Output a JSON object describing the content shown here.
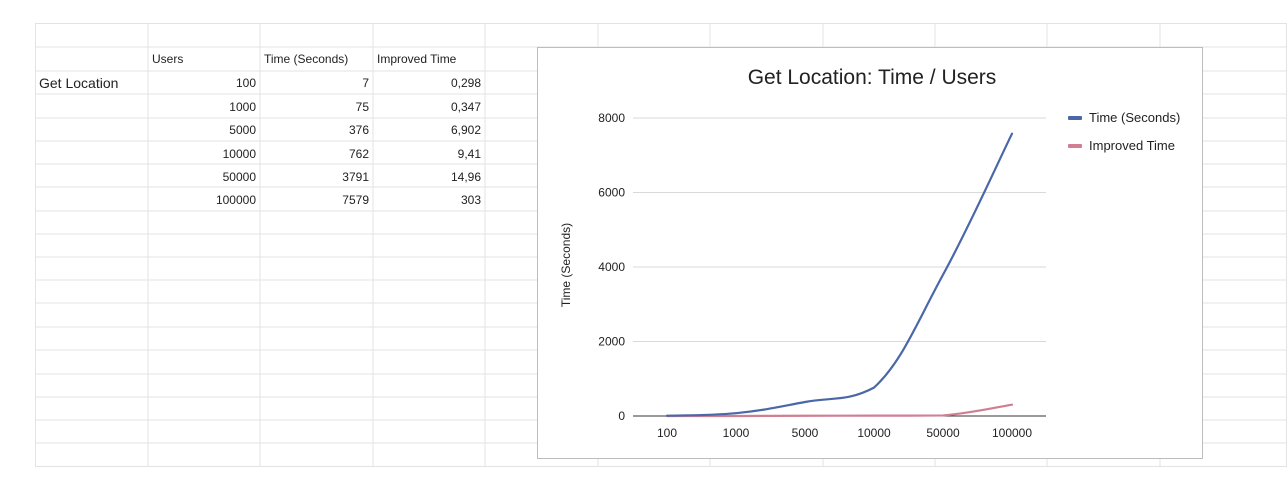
{
  "sheet": {
    "row_label": "Get Location",
    "headers": [
      "Users",
      "Time (Seconds)",
      "Improved Time"
    ],
    "rows": [
      {
        "users": "100",
        "time": "7",
        "improved": "0,298"
      },
      {
        "users": "1000",
        "time": "75",
        "improved": "0,347"
      },
      {
        "users": "5000",
        "time": "376",
        "improved": "6,902"
      },
      {
        "users": "10000",
        "time": "762",
        "improved": "9,41"
      },
      {
        "users": "50000",
        "time": "3791",
        "improved": "14,96"
      },
      {
        "users": "100000",
        "time": "7579",
        "improved": "303"
      }
    ]
  },
  "chart_data": {
    "type": "line",
    "title": "Get Location: Time / Users",
    "xlabel": "",
    "ylabel": "Time (Seconds)",
    "categories": [
      "100",
      "1000",
      "5000",
      "10000",
      "50000",
      "100000"
    ],
    "series": [
      {
        "name": "Time (Seconds)",
        "color": "#4a67a8",
        "values": [
          7,
          75,
          376,
          762,
          3791,
          7579
        ]
      },
      {
        "name": "Improved Time",
        "color": "#cf7e93",
        "values": [
          0.298,
          0.347,
          6.902,
          9.41,
          14.96,
          303
        ]
      }
    ],
    "ylim": [
      0,
      8000
    ],
    "yticks": [
      "0",
      "2000",
      "4000",
      "6000",
      "8000"
    ],
    "grid": true,
    "legend": "right",
    "smooth": true
  }
}
